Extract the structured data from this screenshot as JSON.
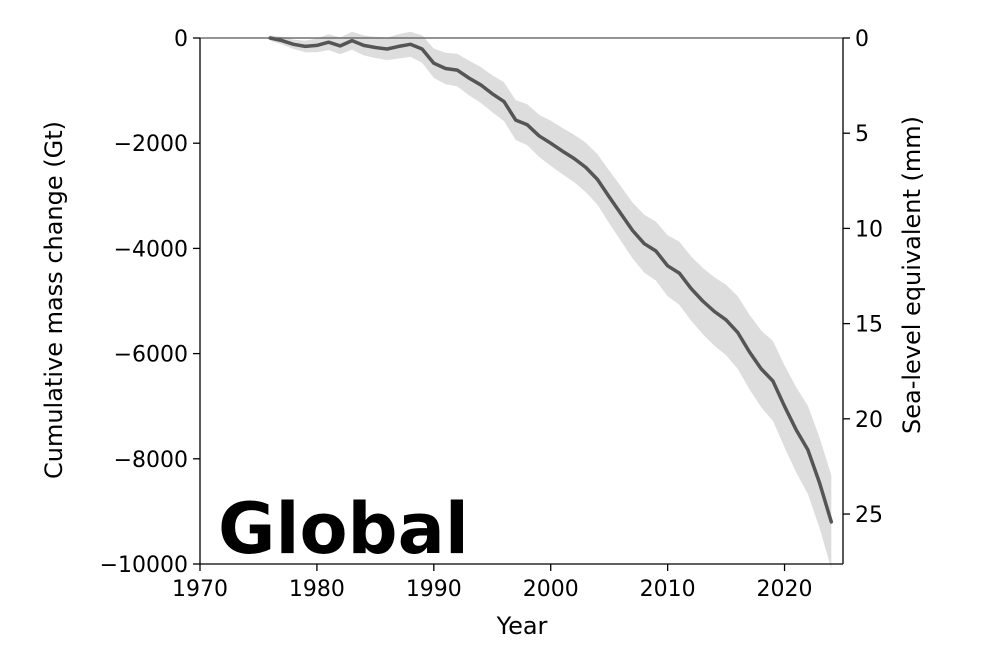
{
  "chart_data": {
    "type": "line",
    "annotation": "Global",
    "xlabel": "Year",
    "ylabel_left": "Cumulative mass change (Gt)",
    "ylabel_right": "Sea-level equivalent (mm)",
    "xlim": [
      1970,
      2025
    ],
    "ylim": [
      -10000,
      0
    ],
    "xticks": [
      1970,
      1980,
      1990,
      2000,
      2010,
      2020
    ],
    "xtick_labels": [
      "1970",
      "1980",
      "1990",
      "2000",
      "2010",
      "2020"
    ],
    "yticks_left": [
      0,
      -2000,
      -4000,
      -6000,
      -8000,
      -10000
    ],
    "ytick_labels_left": [
      "0",
      "−2000",
      "−4000",
      "−6000",
      "−8000",
      "−10000"
    ],
    "yticks_right_mm": [
      0,
      5,
      10,
      15,
      20,
      25
    ],
    "ytick_labels_right": [
      "0",
      "5",
      "10",
      "15",
      "20",
      "25"
    ],
    "gt_per_mm": -362,
    "reference_line": 0,
    "series": [
      {
        "color": "#555555",
        "band_color": "#dddddd",
        "x": [
          1976,
          1977,
          1978,
          1979,
          1980,
          1981,
          1982,
          1983,
          1984,
          1985,
          1986,
          1987,
          1988,
          1989,
          1990,
          1991,
          1992,
          1993,
          1994,
          1995,
          1996,
          1997,
          1998,
          1999,
          2000,
          2001,
          2002,
          2003,
          2004,
          2005,
          2006,
          2007,
          2008,
          2009,
          2010,
          2011,
          2012,
          2013,
          2014,
          2015,
          2016,
          2017,
          2018,
          2019,
          2020,
          2021,
          2022,
          2023,
          2024
        ],
        "values": [
          0,
          -50,
          -120,
          -160,
          -140,
          -80,
          -150,
          -50,
          -140,
          -180,
          -210,
          -160,
          -120,
          -210,
          -480,
          -580,
          -610,
          -760,
          -890,
          -1060,
          -1210,
          -1560,
          -1650,
          -1860,
          -2000,
          -2150,
          -2290,
          -2460,
          -2690,
          -3020,
          -3340,
          -3660,
          -3910,
          -4050,
          -4330,
          -4470,
          -4760,
          -5000,
          -5200,
          -5360,
          -5600,
          -5970,
          -6290,
          -6520,
          -7000,
          -7450,
          -7830,
          -8460,
          -9200
        ],
        "lower": [
          -50,
          -120,
          -210,
          -270,
          -270,
          -230,
          -310,
          -220,
          -330,
          -380,
          -420,
          -390,
          -360,
          -470,
          -760,
          -880,
          -920,
          -1090,
          -1230,
          -1410,
          -1580,
          -1940,
          -2040,
          -2260,
          -2430,
          -2590,
          -2740,
          -2930,
          -3170,
          -3520,
          -3860,
          -4190,
          -4460,
          -4610,
          -4910,
          -5070,
          -5370,
          -5630,
          -5850,
          -6030,
          -6290,
          -6680,
          -7020,
          -7280,
          -7780,
          -8260,
          -8670,
          -9320,
          -10090
        ],
        "upper": [
          50,
          20,
          -30,
          -50,
          -10,
          70,
          10,
          120,
          50,
          20,
          10,
          70,
          120,
          50,
          -200,
          -280,
          -300,
          -430,
          -550,
          -710,
          -840,
          -1180,
          -1260,
          -1460,
          -1570,
          -1710,
          -1840,
          -1990,
          -2210,
          -2520,
          -2820,
          -3130,
          -3360,
          -3490,
          -3750,
          -3870,
          -4150,
          -4370,
          -4550,
          -4690,
          -4910,
          -5260,
          -5560,
          -5760,
          -6220,
          -6640,
          -6990,
          -7600,
          -8310
        ]
      }
    ]
  }
}
